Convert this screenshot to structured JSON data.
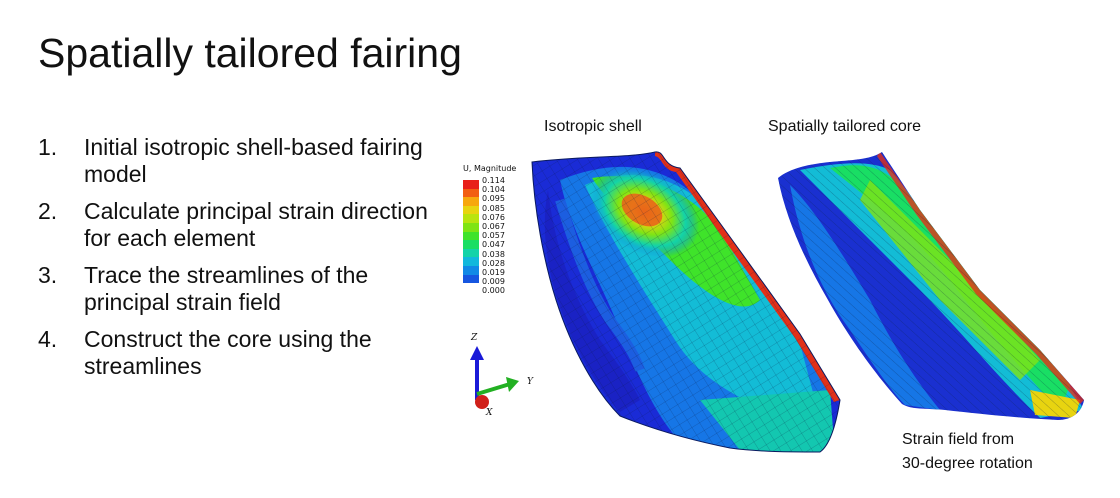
{
  "title": "Spatially tailored fairing",
  "steps": [
    {
      "num": "1.",
      "text": "Initial isotropic shell-based fairing model"
    },
    {
      "num": "2.",
      "text": "Calculate principal strain direction for each element"
    },
    {
      "num": "3.",
      "text": "Trace the streamlines of the principal strain field"
    },
    {
      "num": "4.",
      "text": "Construct the core using the streamlines"
    }
  ],
  "figures": {
    "left_label": "Isotropic shell",
    "right_label": "Spatially tailored core",
    "caption_line1": "Strain field from",
    "caption_line2": "30-degree rotation"
  },
  "legend": {
    "title": "U, Magnitude",
    "values": [
      "0.114",
      "0.104",
      "0.095",
      "0.085",
      "0.076",
      "0.067",
      "0.057",
      "0.047",
      "0.038",
      "0.028",
      "0.019",
      "0.009",
      "0.000"
    ],
    "colors": [
      "#e8201a",
      "#f25e12",
      "#f7a70d",
      "#e8d410",
      "#b9e40f",
      "#7fe414",
      "#3fe32a",
      "#19de64",
      "#13d3a8",
      "#11b8dc",
      "#1189e6",
      "#1656e0",
      "#1a1ad8"
    ]
  },
  "triad": {
    "z": "Z",
    "y": "Y",
    "x": "X"
  }
}
